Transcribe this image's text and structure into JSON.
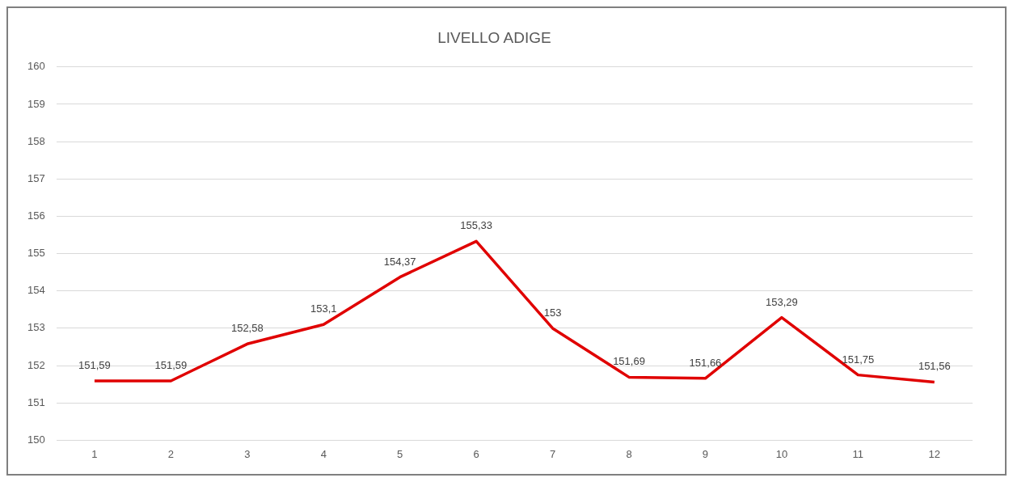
{
  "chart_data": {
    "type": "line",
    "title": "LIVELLO ADIGE",
    "categories": [
      "1",
      "2",
      "3",
      "4",
      "5",
      "6",
      "7",
      "8",
      "9",
      "10",
      "11",
      "12"
    ],
    "series": [
      {
        "color": "#e00000",
        "values": [
          151.59,
          151.59,
          152.58,
          153.1,
          154.37,
          155.33,
          153,
          151.69,
          151.66,
          153.29,
          151.75,
          151.56
        ],
        "value_labels": [
          "151,59",
          "151,59",
          "152,58",
          "153,1",
          "154,37",
          "155,33",
          "153",
          "151,69",
          "151,66",
          "153,29",
          "151,75",
          "151,56"
        ]
      }
    ],
    "ylim": [
      150,
      160
    ],
    "yticks": [
      150,
      151,
      152,
      153,
      154,
      155,
      156,
      157,
      158,
      159,
      160
    ],
    "grid": "y",
    "legend": false,
    "marker": "none",
    "line_style": "solid"
  }
}
